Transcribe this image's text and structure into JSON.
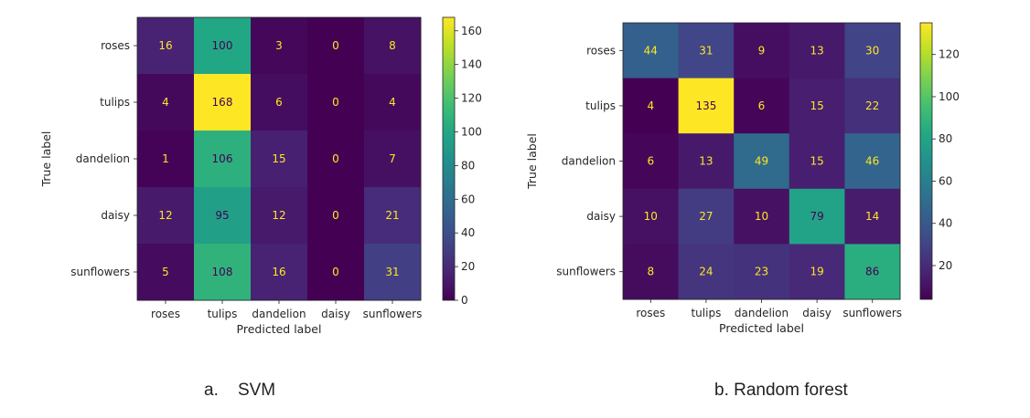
{
  "chart_data": [
    {
      "type": "heatmap",
      "colormap": "viridis",
      "title": "",
      "xlabel": "Predicted label",
      "ylabel": "True label",
      "categories": [
        "roses",
        "tulips",
        "dandelion",
        "daisy",
        "sunflowers"
      ],
      "matrix": [
        [
          16,
          100,
          3,
          0,
          8
        ],
        [
          4,
          168,
          6,
          0,
          4
        ],
        [
          1,
          106,
          15,
          0,
          7
        ],
        [
          12,
          95,
          12,
          0,
          21
        ],
        [
          5,
          108,
          16,
          0,
          31
        ]
      ],
      "vmin": 0,
      "vmax": 168,
      "colorbar_ticks": [
        0,
        20,
        40,
        60,
        80,
        100,
        120,
        140,
        160
      ]
    },
    {
      "type": "heatmap",
      "colormap": "viridis",
      "title": "",
      "xlabel": "Predicted label",
      "ylabel": "True label",
      "categories": [
        "roses",
        "tulips",
        "dandelion",
        "daisy",
        "sunflowers"
      ],
      "matrix": [
        [
          44,
          31,
          9,
          13,
          30
        ],
        [
          4,
          135,
          6,
          15,
          22
        ],
        [
          6,
          13,
          49,
          15,
          46
        ],
        [
          10,
          27,
          10,
          79,
          14
        ],
        [
          8,
          24,
          23,
          19,
          86
        ]
      ],
      "vmin": 4,
      "vmax": 135,
      "colorbar_ticks": [
        20,
        40,
        60,
        80,
        100,
        120
      ]
    }
  ],
  "captions": {
    "a": "a.    SVM",
    "b": "b. Random forest"
  }
}
